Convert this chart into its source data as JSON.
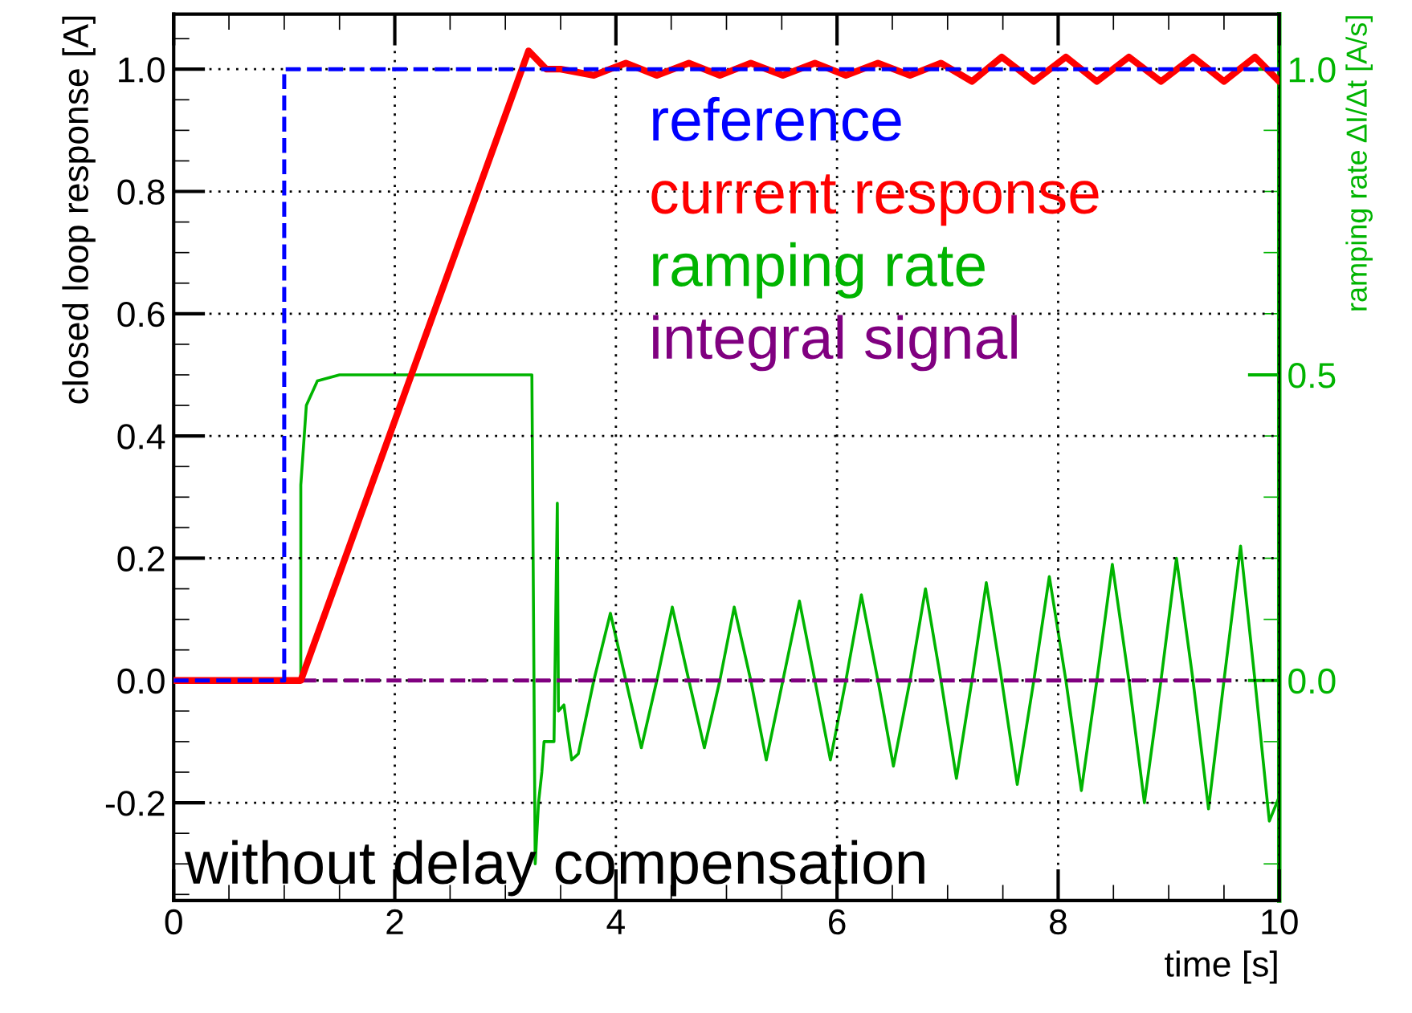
{
  "chart_data": {
    "type": "line",
    "xlabel": "time [s]",
    "ylabel": "closed loop response [A]",
    "y2label": "ramping rate ΔI/Δt [A/s]",
    "annotations": [
      "without delay compensation"
    ],
    "xlim": [
      0,
      10
    ],
    "xticks": [
      0,
      2,
      4,
      6,
      8,
      10
    ],
    "ylim": [
      -0.36,
      1.09
    ],
    "yticks": [
      {
        "value": -0.2,
        "label": "-0.2"
      },
      {
        "value": 0,
        "label": "0.0"
      },
      {
        "value": 0.2,
        "label": "0.2"
      },
      {
        "value": 0.4,
        "label": "0.4"
      },
      {
        "value": 0.6,
        "label": "0.6"
      },
      {
        "value": 0.8,
        "label": "0.8"
      },
      {
        "value": 1.0,
        "label": "1.0"
      }
    ],
    "y2lim": [
      -0.36,
      1.09
    ],
    "y2ticks": [
      {
        "value": 0,
        "label": "0.0"
      },
      {
        "value": 0.5,
        "label": "0.5"
      },
      {
        "value": 1.0,
        "label": "1.0"
      }
    ],
    "grid": true,
    "marker": "none",
    "series": [
      {
        "name": "reference",
        "color": "#0000ff",
        "line_style": "dashed",
        "x": [
          0,
          1.0,
          1.0,
          10
        ],
        "values": [
          0,
          0,
          1.0,
          1.0
        ]
      },
      {
        "name": "current response",
        "color": "#ff0000",
        "line_style": "solid",
        "x": [
          0,
          1.15,
          3.21,
          3.37,
          3.5,
          3.8,
          4.09,
          4.37,
          4.66,
          4.94,
          5.22,
          5.51,
          5.8,
          6.08,
          6.37,
          6.66,
          6.94,
          7.22,
          7.49,
          7.78,
          8.07,
          8.35,
          8.64,
          8.93,
          9.22,
          9.5,
          9.78,
          10
        ],
        "values": [
          0,
          0,
          1.03,
          1.0,
          1.0,
          0.99,
          1.01,
          0.99,
          1.01,
          0.99,
          1.01,
          0.99,
          1.01,
          0.99,
          1.01,
          0.99,
          1.01,
          0.98,
          1.02,
          0.98,
          1.02,
          0.98,
          1.02,
          0.98,
          1.02,
          0.98,
          1.02,
          0.98
        ]
      },
      {
        "name": "ramping rate",
        "color": "#00b400",
        "line_style": "solid",
        "axis": "y2",
        "x": [
          0,
          1.15,
          1.15,
          1.2,
          1.3,
          1.5,
          3.24,
          3.27,
          3.3,
          3.33,
          3.35,
          3.44,
          3.47,
          3.48,
          3.53,
          3.56,
          3.6,
          3.66,
          3.8,
          3.95,
          4.09,
          4.23,
          4.37,
          4.51,
          4.66,
          4.8,
          4.94,
          5.07,
          5.22,
          5.36,
          5.51,
          5.66,
          5.8,
          5.94,
          6.08,
          6.22,
          6.37,
          6.51,
          6.66,
          6.8,
          6.94,
          7.08,
          7.22,
          7.35,
          7.49,
          7.63,
          7.78,
          7.92,
          8.07,
          8.21,
          8.35,
          8.49,
          8.64,
          8.78,
          8.93,
          9.07,
          9.22,
          9.36,
          9.5,
          9.65,
          9.78,
          9.91,
          10
        ],
        "values": [
          0,
          0,
          0.32,
          0.45,
          0.49,
          0.5,
          0.5,
          -0.3,
          -0.2,
          -0.15,
          -0.1,
          -0.1,
          0.29,
          -0.05,
          -0.04,
          -0.08,
          -0.13,
          -0.12,
          0,
          0.11,
          0,
          -0.11,
          0,
          0.12,
          0,
          -0.11,
          0,
          0.12,
          0,
          -0.13,
          0,
          0.13,
          0,
          -0.13,
          0,
          0.14,
          0,
          -0.14,
          0,
          0.15,
          0,
          -0.16,
          0,
          0.16,
          0,
          -0.17,
          0,
          0.17,
          0,
          -0.18,
          0,
          0.19,
          0,
          -0.2,
          0,
          0.2,
          0,
          -0.21,
          0,
          0.22,
          0,
          -0.23,
          -0.19
        ]
      },
      {
        "name": "integral signal",
        "color": "#800080",
        "line_style": "dashed",
        "x": [
          0,
          9.62
        ],
        "values": [
          0,
          0
        ]
      }
    ]
  }
}
